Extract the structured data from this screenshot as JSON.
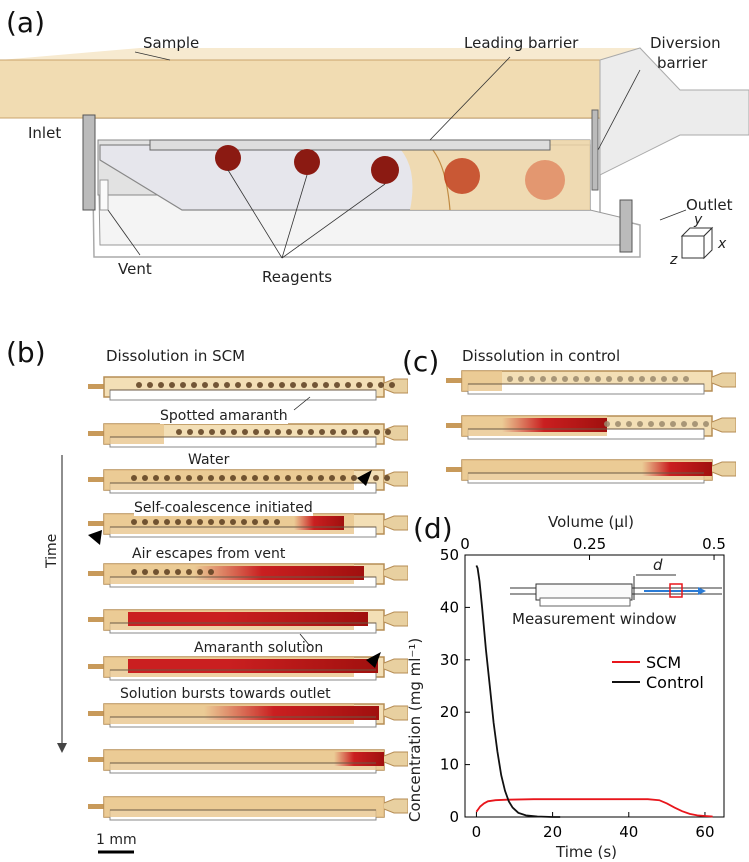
{
  "panel_a": {
    "tag": "(a)",
    "labels": {
      "sample": "Sample",
      "leading_barrier": "Leading barrier",
      "diversion_barrier_1": "Diversion",
      "diversion_barrier_2": "barrier",
      "inlet": "Inlet",
      "outlet": "Outlet",
      "vent": "Vent",
      "reagents": "Reagents",
      "axis_x": "x",
      "axis_y": "y",
      "axis_z": "z"
    }
  },
  "panel_b": {
    "tag": "(b)",
    "title": "Dissolution in SCM",
    "annotations": {
      "spotted": "Spotted amaranth",
      "water": "Water",
      "self_coalescence": "Self-coalescence initiated",
      "air_escapes": "Air escapes from vent",
      "amaranth_solution": "Amaranth solution",
      "bursts": "Solution bursts towards outlet"
    },
    "time_label": "Time",
    "scale_bar": "1 mm"
  },
  "panel_c": {
    "tag": "(c)",
    "title": "Dissolution in control"
  },
  "panel_d": {
    "tag": "(d)",
    "inset_label": "Measurement window",
    "inset_d": "d"
  },
  "colors": {
    "channel_fill": "#f3dfb6",
    "channel_edge": "#b68d55",
    "reagent": "#8b1a12",
    "solution": "#c8161a",
    "scm_line": "#e8161c",
    "control_line": "#111111"
  },
  "chart_data": {
    "type": "line",
    "xlabel": "Time (s)",
    "ylabel": "Concentration (mg ml⁻¹)",
    "top_xlabel": "Volume (µl)",
    "xlim": [
      -3,
      65
    ],
    "ylim": [
      0,
      50
    ],
    "xticks": [
      0,
      20,
      40,
      60
    ],
    "yticks": [
      0,
      10,
      20,
      30,
      40,
      50
    ],
    "top_xticks": [
      {
        "value": 0,
        "label": "0"
      },
      {
        "value": 0.25,
        "label": "0.25"
      },
      {
        "value": 0.5,
        "label": "0.5"
      }
    ],
    "top_xlim": [
      0,
      0.52
    ],
    "legend_position": "right",
    "series": [
      {
        "name": "SCM",
        "color": "#e8161c",
        "x": [
          0,
          1,
          2,
          3,
          5,
          8,
          15,
          25,
          35,
          45,
          48,
          50,
          52,
          54,
          56,
          58,
          60,
          62
        ],
        "y": [
          1.0,
          2.0,
          2.6,
          3.0,
          3.2,
          3.3,
          3.4,
          3.4,
          3.4,
          3.4,
          3.2,
          2.6,
          1.8,
          1.1,
          0.6,
          0.3,
          0.2,
          0.1
        ]
      },
      {
        "name": "Control",
        "color": "#111111",
        "x": [
          0,
          0.3,
          0.8,
          1.5,
          2.5,
          3.5,
          4.5,
          5.5,
          6.5,
          7.5,
          8.5,
          9.5,
          11,
          13,
          16,
          20,
          22
        ],
        "y": [
          48,
          47.5,
          45,
          40,
          32,
          25,
          18,
          12.5,
          8,
          5,
          3,
          1.8,
          0.8,
          0.3,
          0.1,
          0,
          0
        ]
      }
    ]
  }
}
